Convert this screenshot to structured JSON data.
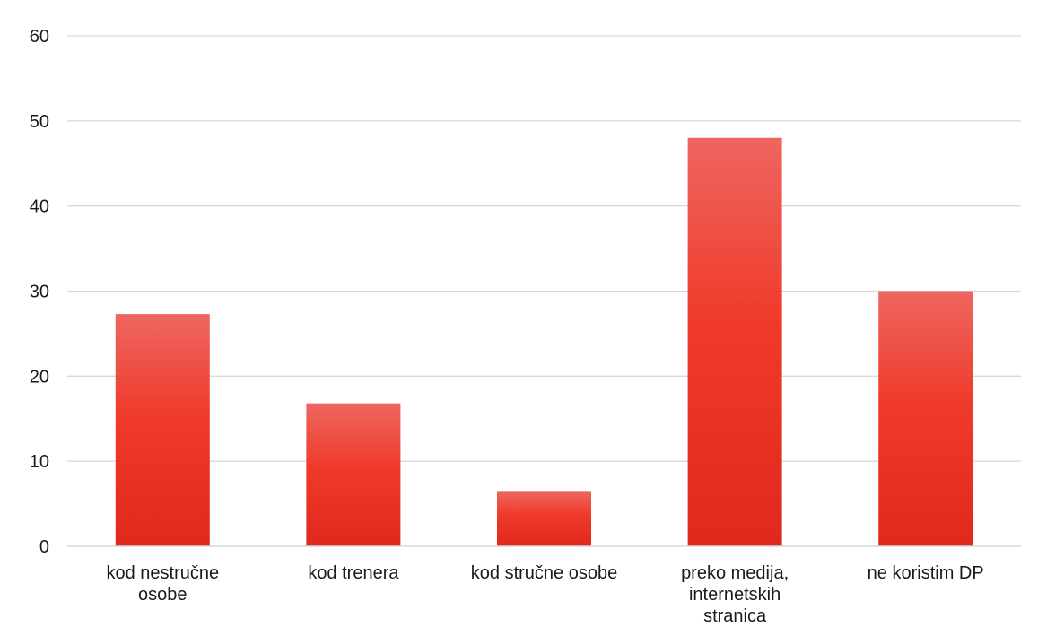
{
  "chart_data": {
    "type": "bar",
    "categories": [
      "kod nestručne osobe",
      "kod trenera",
      "kod stručne osobe",
      "preko medija, internetskih stranica",
      "ne koristim DP"
    ],
    "category_label_lines": [
      [
        "kod nestručne",
        "osobe"
      ],
      [
        "kod trenera"
      ],
      [
        "kod stručne osobe"
      ],
      [
        "preko medija,",
        "internetskih",
        "stranica"
      ],
      [
        "ne koristim DP"
      ]
    ],
    "values": [
      27.3,
      16.8,
      6.5,
      48.0,
      30.0
    ],
    "ylim": [
      0,
      60
    ],
    "yticks": [
      0,
      10,
      20,
      30,
      40,
      50,
      60
    ],
    "title": "",
    "xlabel": "",
    "ylabel": "",
    "grid": true,
    "legend": "none",
    "colors": {
      "bar_top": "#ee6660",
      "bar_mid": "#ef3a2a",
      "bar_bottom": "#e0281c",
      "grid": "#d9d9d9",
      "axis": "#d9d9d9",
      "text": "#1a1a1a"
    }
  }
}
